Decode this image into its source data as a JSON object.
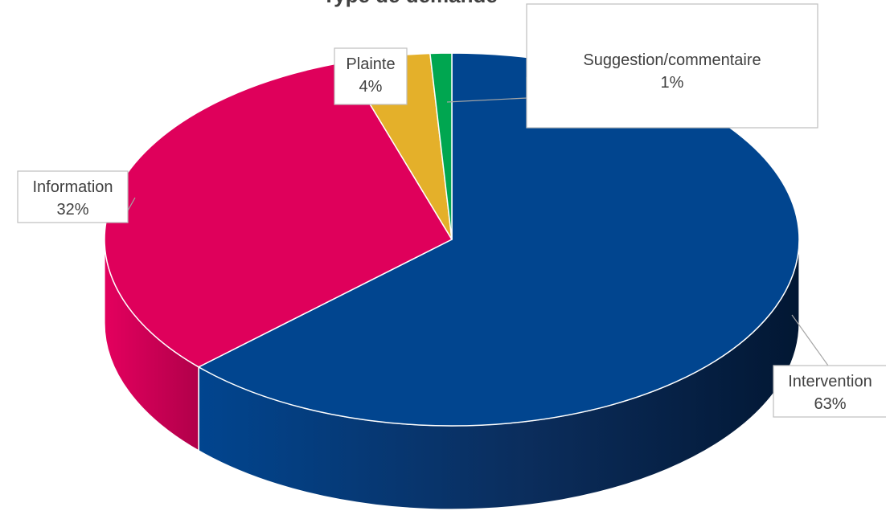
{
  "chart_data": {
    "type": "pie",
    "title": "Type de demande",
    "series": [
      {
        "name": "Type de demande",
        "values": [
          63,
          32,
          4,
          1
        ]
      }
    ],
    "categories": [
      "Intervention",
      "Information",
      "Plainte",
      "Suggestion/commentaire"
    ],
    "data_labels": [
      "63%",
      "32%",
      "4%",
      "1%"
    ],
    "colors": {
      "Intervention": "#01458F",
      "Information": "#DF005B",
      "Plainte": "#E4B02A",
      "Suggestion/commentaire": "#00A650"
    },
    "style": "3d-pie",
    "legend": "none"
  }
}
